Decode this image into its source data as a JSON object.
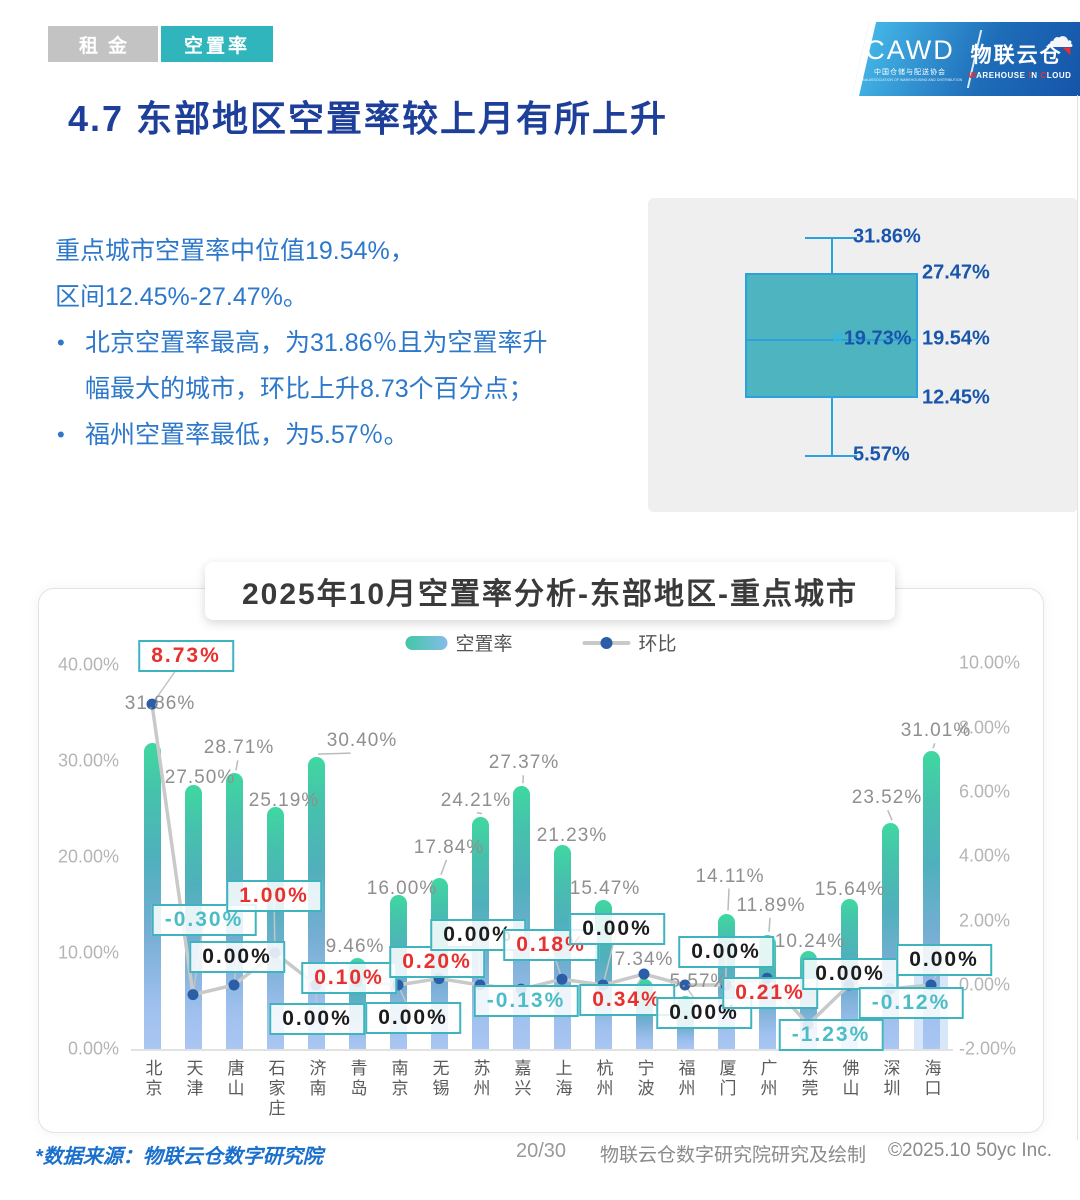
{
  "header": {
    "tabs": [
      {
        "label": "租金",
        "active": false
      },
      {
        "label": "空置率",
        "active": true
      }
    ],
    "title": "4.7 东部地区空置率较上月有所上升",
    "logo": {
      "cawd": "CAWD",
      "cawd_sub": "中国仓储与配送协会",
      "cawd_sub_en": "CHINA ASSOCIATION OF WAREHOUSING AND DISTRIBUTION",
      "brand": "物联云仓",
      "brand_sub": "WAREHOUSE IN CLOUD",
      "cloud_icon": "cloud-icon"
    }
  },
  "summary": {
    "intro_lines": [
      "重点城市空置率中位值19.54%，",
      "区间12.45%-27.47%。"
    ],
    "bullets": [
      [
        "北京空置率最高，为31.86％且为空置率升",
        "幅最大的城市，环比上升8.73个百分点；"
      ],
      [
        "福州空置率最低，为5.57％。"
      ]
    ]
  },
  "boxplot": {
    "whisker_high": 31.86,
    "q3": 27.47,
    "median": 19.54,
    "mean": 19.73,
    "q1": 12.45,
    "whisker_low": 5.57,
    "unit": "%"
  },
  "chart_data": {
    "type": "bar+line",
    "title": "2025年10月空置率分析-东部地区-重点城市",
    "categories": [
      "北京",
      "天津",
      "唐山",
      "石家庄",
      "济南",
      "青岛",
      "南京",
      "无锡",
      "苏州",
      "嘉兴",
      "上海",
      "杭州",
      "宁波",
      "福州",
      "厦门",
      "广州",
      "东莞",
      "佛山",
      "深圳",
      "海口"
    ],
    "series": [
      {
        "name": "空置率",
        "type": "bar",
        "axis": "left",
        "unit": "%",
        "values": [
          31.86,
          27.5,
          28.71,
          25.19,
          30.4,
          9.46,
          16.0,
          17.84,
          24.21,
          27.37,
          21.23,
          15.47,
          7.34,
          5.57,
          14.11,
          11.89,
          10.24,
          15.64,
          23.52,
          31.01
        ]
      },
      {
        "name": "环比",
        "type": "line",
        "axis": "right",
        "unit": "%",
        "values": [
          8.73,
          -0.3,
          0.0,
          1.0,
          0.0,
          0.1,
          0.0,
          0.2,
          0.0,
          -0.13,
          0.18,
          0.0,
          0.34,
          0.0,
          0.0,
          0.21,
          -1.23,
          0.0,
          -0.12,
          0.0
        ]
      }
    ],
    "left_axis": {
      "ticks": [
        "40.00%",
        "30.00%",
        "20.00%",
        "10.00%",
        "0.00%"
      ],
      "min": 0,
      "max": 40
    },
    "right_axis": {
      "ticks": [
        "10.00%",
        "8.00%",
        "6.00%",
        "4.00%",
        "2.00%",
        "0.00%",
        "-2.00%"
      ],
      "min": -2,
      "max": 10
    },
    "grid": false,
    "legend_position": "top"
  },
  "footer": {
    "source": "*数据来源：物联云仓数字研究院",
    "page": "20/30",
    "credit": "物联云仓数字研究院研究及绘制",
    "copyright": "©2025.10 50yc Inc."
  },
  "colors": {
    "accent_teal": "#2fb5bb",
    "tab_gray": "#c3c3c3",
    "title_navy": "#1d3e99",
    "text_blue": "#2d78cb",
    "bar_top": "#3fd8a0",
    "bar_bottom": "#aac6f2",
    "line_gray": "#c9c9c9",
    "dot_blue": "#2b5ea7",
    "label_positive_red": "#e8302e",
    "label_negative_teal": "#4cbcc6",
    "label_zero_black": "#1c1c1c",
    "callout_border": "#3eb4bf",
    "boxplot_fill": "#4eb4bf",
    "boxplot_stroke": "#2ba2de",
    "boxplot_label_blue": "#1856ac"
  }
}
